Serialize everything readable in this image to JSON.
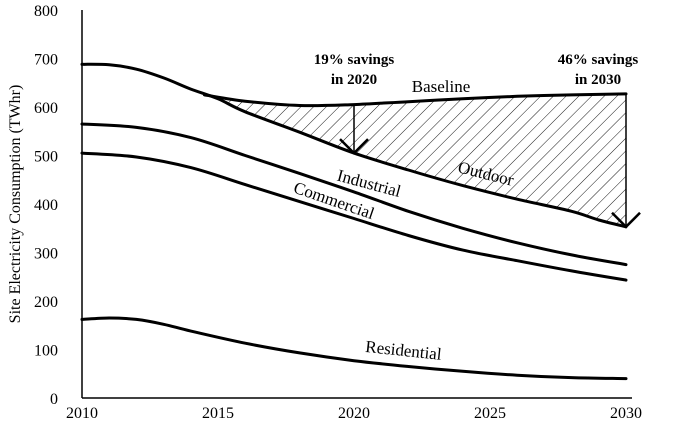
{
  "chart_data": {
    "type": "line",
    "ylabel": "Site Electricity Consumption (TWhr)",
    "xlabel": "",
    "xlim": [
      2010,
      2030
    ],
    "ylim": [
      0,
      800
    ],
    "x_ticks": [
      2010,
      2015,
      2020,
      2025,
      2030
    ],
    "y_ticks": [
      0,
      100,
      200,
      300,
      400,
      500,
      600,
      700,
      800
    ],
    "grid": false,
    "series": [
      {
        "name": "Baseline",
        "x": [
          2014.5,
          2016,
          2018,
          2020,
          2022,
          2024,
          2026,
          2028,
          2030
        ],
        "y": [
          625,
          612,
          603,
          605,
          611,
          617,
          622,
          625,
          627
        ]
      },
      {
        "name": "Outdoor",
        "x": [
          2010,
          2011,
          2012,
          2013,
          2014,
          2015,
          2016,
          2018,
          2020,
          2022,
          2024,
          2026,
          2028,
          2029,
          2030
        ],
        "y": [
          688,
          687,
          678,
          660,
          637,
          617,
          590,
          548,
          505,
          470,
          438,
          410,
          385,
          367,
          353
        ]
      },
      {
        "name": "Industrial",
        "x": [
          2010,
          2012,
          2014,
          2016,
          2018,
          2020,
          2022,
          2024,
          2026,
          2028,
          2030
        ],
        "y": [
          565,
          558,
          537,
          500,
          463,
          425,
          385,
          350,
          320,
          295,
          275
        ]
      },
      {
        "name": "Commercial",
        "x": [
          2010,
          2012,
          2014,
          2016,
          2018,
          2020,
          2022,
          2024,
          2026,
          2028,
          2030
        ],
        "y": [
          505,
          497,
          475,
          440,
          405,
          370,
          335,
          305,
          283,
          262,
          243
        ]
      },
      {
        "name": "Residential",
        "x": [
          2010,
          2011,
          2012,
          2013,
          2014,
          2016,
          2018,
          2020,
          2022,
          2024,
          2026,
          2028,
          2030
        ],
        "y": [
          162,
          165,
          162,
          152,
          138,
          113,
          93,
          77,
          65,
          55,
          47,
          42,
          40
        ]
      }
    ],
    "annotations": [
      {
        "line1": "19% savings",
        "line2": "in 2020",
        "year": 2020
      },
      {
        "line1": "46% savings",
        "line2": "in 2030",
        "year": 2030
      }
    ]
  }
}
